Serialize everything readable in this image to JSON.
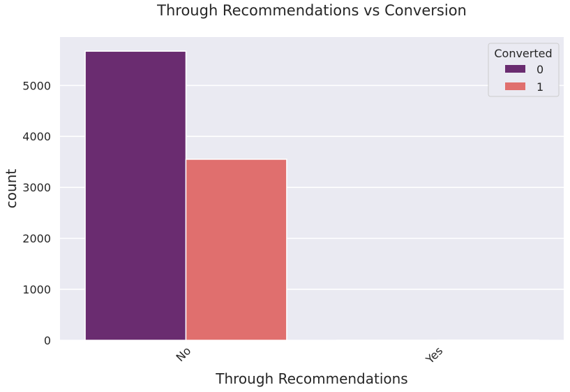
{
  "chart_data": {
    "type": "bar",
    "title": "Through Recommendations vs Conversion",
    "xlabel": "Through Recommendations",
    "ylabel": "count",
    "categories": [
      "No",
      "Yes"
    ],
    "series": [
      {
        "name": "0",
        "values": [
          5672,
          2
        ],
        "color": "#6a2c70"
      },
      {
        "name": "1",
        "values": [
          3552,
          5
        ],
        "color": "#e06f6e"
      }
    ],
    "ylim": [
      0,
      5950
    ],
    "yticks": [
      0,
      1000,
      2000,
      3000,
      4000,
      5000
    ],
    "ytick_labels": [
      "0",
      "1000",
      "2000",
      "3000",
      "4000",
      "5000"
    ],
    "grid": true,
    "legend": {
      "title": "Converted",
      "position": "top-right"
    },
    "background_color": "#eaeaf2"
  }
}
